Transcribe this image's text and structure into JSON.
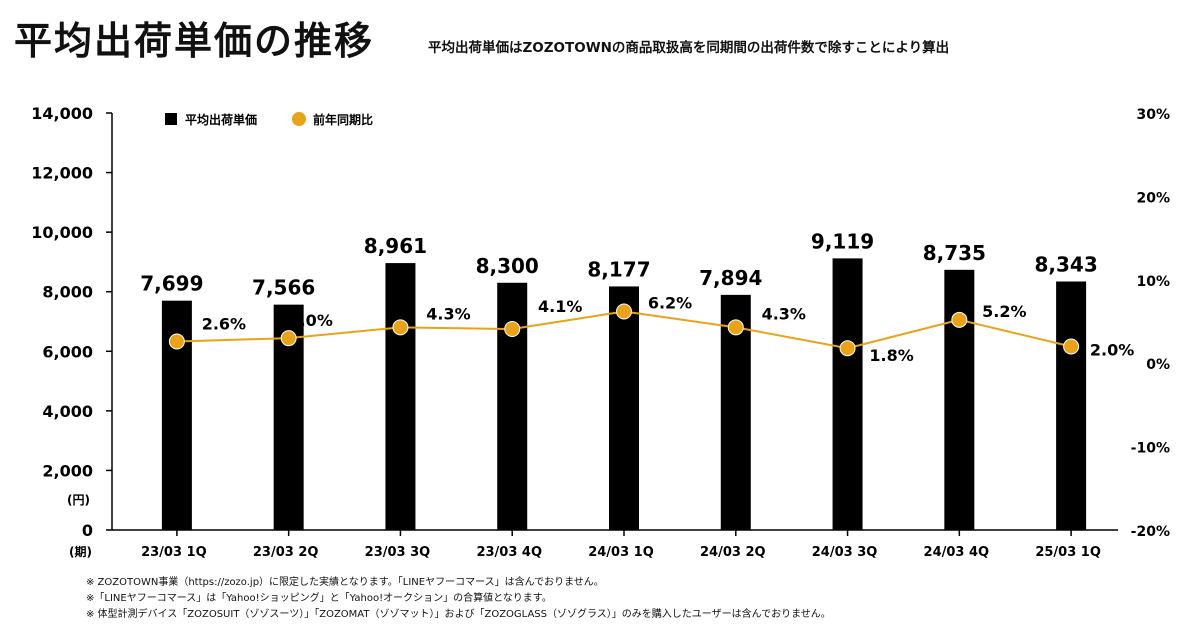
{
  "title": "平均出荷単価の推移",
  "subtitle": "平均出荷単価はZOZOTOWNの商品取扱高を同期間の出荷件数で除すことにより算出",
  "chart_data": {
    "type": "bar+line",
    "categories": [
      "23/03 1Q",
      "23/03 2Q",
      "23/03 3Q",
      "23/03 4Q",
      "24/03 1Q",
      "24/03 2Q",
      "24/03 3Q",
      "24/03 4Q",
      "25/03 1Q"
    ],
    "series": [
      {
        "name": "平均出荷単価",
        "type": "bar",
        "axis": "left",
        "color": "#000000",
        "values": [
          7699,
          7566,
          8961,
          8300,
          8177,
          7894,
          9119,
          8735,
          8343
        ],
        "labels": [
          "7,699",
          "7,566",
          "8,961",
          "8,300",
          "8,177",
          "7,894",
          "9,119",
          "8,735",
          "8,343"
        ]
      },
      {
        "name": "前年同期比",
        "type": "line",
        "axis": "right",
        "color": "#E8A317",
        "values": [
          2.6,
          3.0,
          4.3,
          4.1,
          6.2,
          4.3,
          1.8,
          5.2,
          2.0
        ],
        "labels": [
          "2.6%",
          "3.0%",
          "4.3%",
          "4.1%",
          "6.2%",
          "4.3%",
          "1.8%",
          "5.2%",
          "2.0%"
        ]
      }
    ],
    "y_left": {
      "range": [
        0,
        14000
      ],
      "ticks": [
        "0",
        "2,000",
        "4,000",
        "6,000",
        "8,000",
        "10,000",
        "12,000",
        "14,000"
      ],
      "unit": "(円)"
    },
    "y_right": {
      "range": [
        -20,
        30
      ],
      "ticks": [
        "-20%",
        "-10%",
        "0%",
        "10%",
        "20%",
        "30%"
      ]
    },
    "xlabel": "(期)",
    "grid": false,
    "legend": "top-left"
  },
  "notes": [
    "※ ZOZOTOWN事業（https://zozo.jp）に限定した実績となります。「LINEヤフーコマース」は含んでおりません。",
    "※「LINEヤフーコマース」は「Yahoo!ショッピング」と「Yahoo!オークション」の合算値となります。",
    "※ 体型計測デバイス「ZOZOSUIT（ゾゾスーツ）」「ZOZOMAT（ゾゾマット）」および「ZOZOGLASS（ゾゾグラス）」のみを購入したユーザーは含んでおりません。"
  ]
}
